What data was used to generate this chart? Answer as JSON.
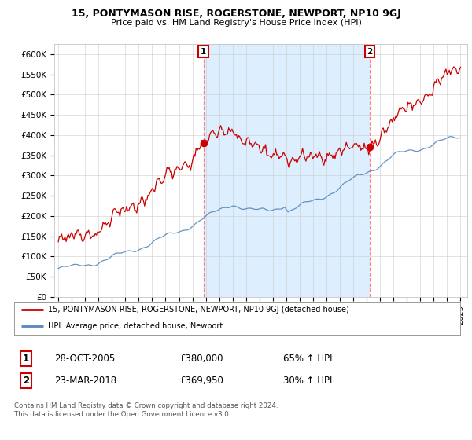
{
  "title": "15, PONTYMASON RISE, ROGERSTONE, NEWPORT, NP10 9GJ",
  "subtitle": "Price paid vs. HM Land Registry's House Price Index (HPI)",
  "ylim": [
    0,
    625000
  ],
  "yticks": [
    0,
    50000,
    100000,
    150000,
    200000,
    250000,
    300000,
    350000,
    400000,
    450000,
    500000,
    550000,
    600000
  ],
  "ytick_labels": [
    "£0",
    "£50K",
    "£100K",
    "£150K",
    "£200K",
    "£250K",
    "£300K",
    "£350K",
    "£400K",
    "£450K",
    "£500K",
    "£550K",
    "£600K"
  ],
  "xlim_start": 1994.7,
  "xlim_end": 2025.5,
  "transaction1_date": 2005.82,
  "transaction1_price": 380000,
  "transaction1_label": "1",
  "transaction2_date": 2018.22,
  "transaction2_price": 369950,
  "transaction2_label": "2",
  "line_color_property": "#cc0000",
  "line_color_hpi": "#5588bb",
  "shade_color": "#ddeeff",
  "legend_label_property": "15, PONTYMASON RISE, ROGERSTONE, NEWPORT, NP10 9GJ (detached house)",
  "legend_label_hpi": "HPI: Average price, detached house, Newport",
  "table_row1": [
    "1",
    "28-OCT-2005",
    "£380,000",
    "65% ↑ HPI"
  ],
  "table_row2": [
    "2",
    "23-MAR-2018",
    "£369,950",
    "30% ↑ HPI"
  ],
  "footer_text": "Contains HM Land Registry data © Crown copyright and database right 2024.\nThis data is licensed under the Open Government Licence v3.0.",
  "background_color": "#ffffff",
  "grid_color": "#cccccc",
  "title_fontsize": 9,
  "subtitle_fontsize": 8,
  "tick_fontsize": 7.5
}
